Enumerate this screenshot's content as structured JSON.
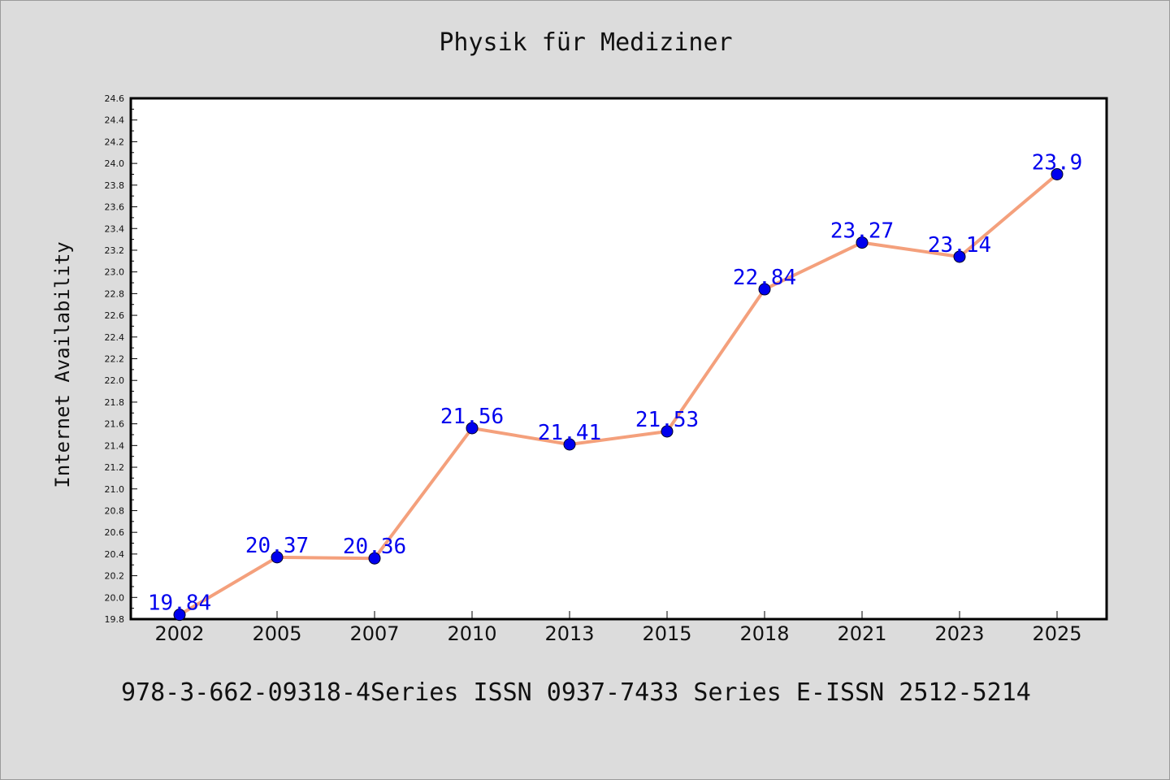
{
  "page": {
    "background": "#dcdcdc"
  },
  "chart_data": {
    "type": "line",
    "title": "Physik für Mediziner",
    "ylabel": "Internet Availability",
    "xlabel": "",
    "categories": [
      "2002",
      "2005",
      "2007",
      "2010",
      "2013",
      "2015",
      "2018",
      "2021",
      "2023",
      "2025"
    ],
    "values": [
      19.84,
      20.37,
      20.36,
      21.56,
      21.41,
      21.53,
      22.84,
      23.27,
      23.14,
      23.9
    ],
    "data_labels": [
      "19.84",
      "20.37",
      "20.36",
      "21.56",
      "21.41",
      "21.53",
      "22.84",
      "23.27",
      "23.14",
      "23.9"
    ],
    "ylim": [
      19.8,
      24.6
    ],
    "y_ticks": [
      "19.8",
      "20.0",
      "20.2",
      "20.4",
      "20.6",
      "20.8",
      "21.0",
      "21.2",
      "21.4",
      "21.6",
      "21.8",
      "22.0",
      "22.2",
      "22.4",
      "22.6",
      "22.8",
      "23.0",
      "23.2",
      "23.4",
      "23.6",
      "23.8",
      "24.0",
      "24.2",
      "24.4",
      "24.6"
    ],
    "grid": false,
    "legend": "none",
    "line_color": "#f4a07c",
    "marker_color": "#0000ee",
    "label_color": "#0000ee"
  },
  "footer": {
    "text": "978-3-662-09318-4Series ISSN 0937-7433 Series E-ISSN 2512-5214"
  }
}
